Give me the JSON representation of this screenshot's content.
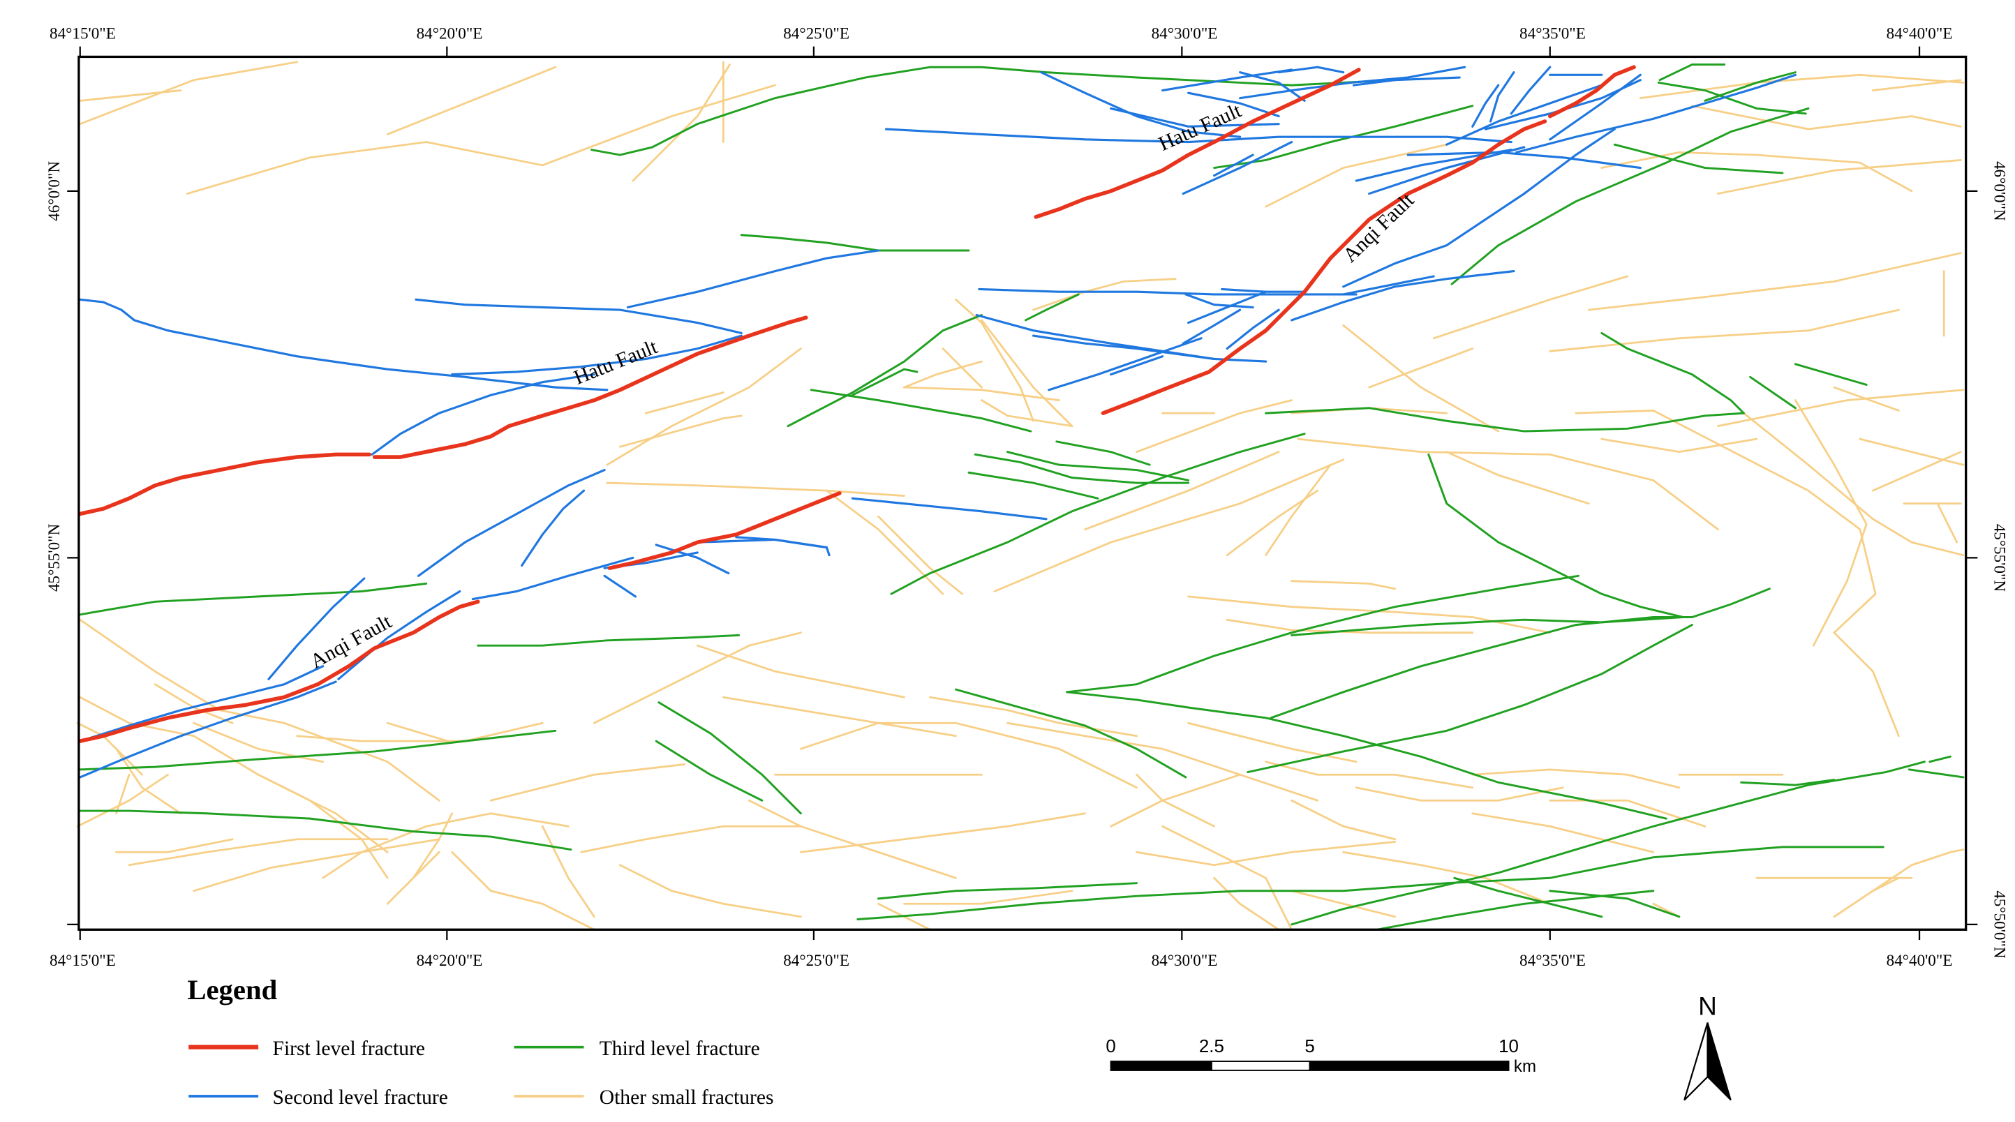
{
  "map": {
    "top_lon_labels": [
      "84°15'0\"E",
      "84°20'0\"E",
      "84°25'0\"E",
      "84°30'0\"E",
      "84°35'0\"E",
      "84°40'0\"E"
    ],
    "bottom_lon_labels": [
      "84°15'0\"E",
      "84°20'0\"E",
      "84°25'0\"E",
      "84°30'0\"E",
      "84°35'0\"E",
      "84°40'0\"E"
    ],
    "left_lat_labels": [
      "46°0'0\"N",
      "45°55'0\"N"
    ],
    "right_lat_labels": [
      "46°0'0\"N",
      "45°55'0\"N",
      "45°50'0\"N"
    ],
    "fault_labels": [
      "Hatu Fault",
      "Anqi Fault",
      "Hatu Fault",
      "Anqi Fault"
    ]
  },
  "colors": {
    "first_level": "#e8341c",
    "second_level": "#1f77e0",
    "third_level": "#21a121",
    "other_small": "#f7cf86",
    "frame": "#000000"
  },
  "legend": {
    "title": "Legend",
    "items": [
      {
        "label": "First level fracture",
        "color": "#e8341c"
      },
      {
        "label": "Third level fracture",
        "color": "#21a121"
      },
      {
        "label": "Second level fracture",
        "color": "#1f77e0"
      },
      {
        "label": "Other small fractures",
        "color": "#f7cf86"
      }
    ]
  },
  "scale_bar": {
    "ticks": [
      "0",
      "2.5",
      "5",
      "10"
    ],
    "unit": "km"
  },
  "north_arrow": {
    "label": "N"
  }
}
